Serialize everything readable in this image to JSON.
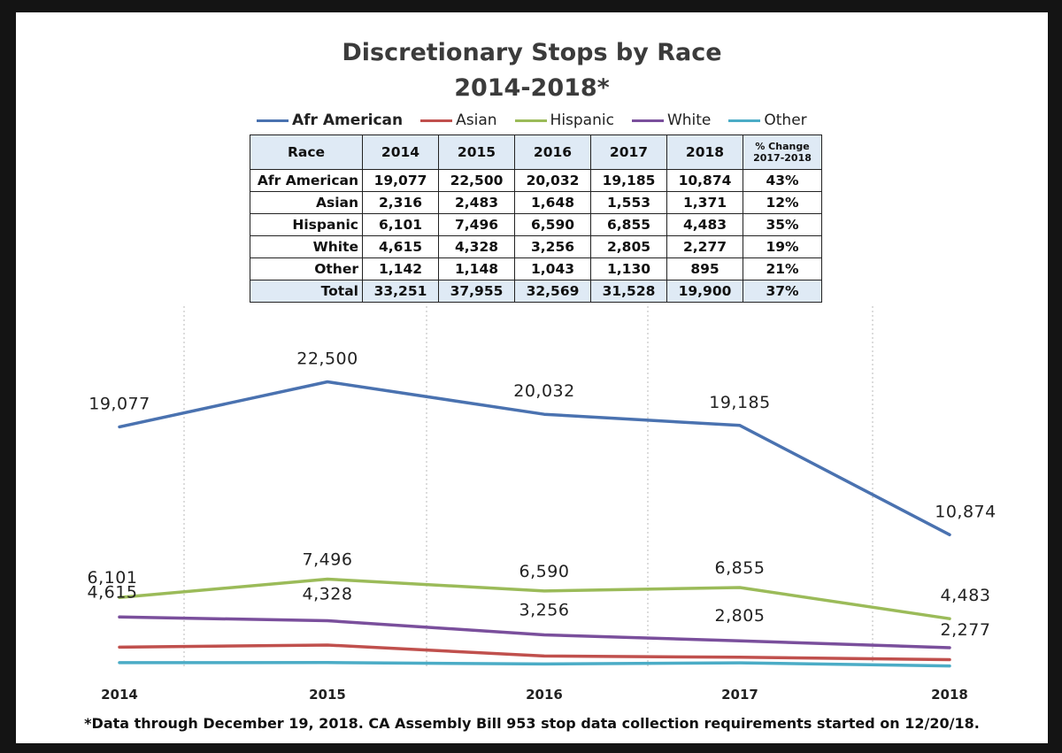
{
  "chart_data": {
    "type": "line",
    "title": "Discretionary Stops by Race",
    "subtitle": "2014-2018*",
    "categories": [
      "2014",
      "2015",
      "2016",
      "2017",
      "2018"
    ],
    "series": [
      {
        "name": "Afr American",
        "color": "#4a72b0",
        "values": [
          19077,
          22500,
          20032,
          19185,
          10874
        ],
        "labels": [
          "19,077",
          "22,500",
          "20,032",
          "19,185",
          "10,874"
        ]
      },
      {
        "name": "Asian",
        "color": "#c0504d",
        "values": [
          2316,
          2483,
          1648,
          1553,
          1371
        ],
        "labels": []
      },
      {
        "name": "Hispanic",
        "color": "#9bbb59",
        "values": [
          6101,
          7496,
          6590,
          6855,
          4483
        ],
        "labels": [
          "6,101",
          "7,496",
          "6,590",
          "6,855",
          "4,483"
        ]
      },
      {
        "name": "White",
        "color": "#7a4f9c",
        "values": [
          4615,
          4328,
          3256,
          2805,
          2277
        ],
        "labels": [
          "4,615",
          "4,328",
          "3,256",
          "2,805",
          "2,277"
        ]
      },
      {
        "name": "Other",
        "color": "#4bacc6",
        "values": [
          1142,
          1148,
          1043,
          1130,
          895
        ],
        "labels": []
      }
    ],
    "legend_position": "top",
    "grid": "vertical dotted lines",
    "table": {
      "header": [
        "Race",
        "2014",
        "2015",
        "2016",
        "2017",
        "2018"
      ],
      "change_header_line1": "% Change",
      "change_header_line2": "2017-2018",
      "rows": [
        {
          "race": "Afr American",
          "cells": [
            "19,077",
            "22,500",
            "20,032",
            "19,185",
            "10,874"
          ],
          "change": "43%"
        },
        {
          "race": "Asian",
          "cells": [
            "2,316",
            "2,483",
            "1,648",
            "1,553",
            "1,371"
          ],
          "change": "12%"
        },
        {
          "race": "Hispanic",
          "cells": [
            "6,101",
            "7,496",
            "6,590",
            "6,855",
            "4,483"
          ],
          "change": "35%"
        },
        {
          "race": "White",
          "cells": [
            "4,615",
            "4,328",
            "3,256",
            "2,805",
            "2,277"
          ],
          "change": "19%"
        },
        {
          "race": "Other",
          "cells": [
            "1,142",
            "1,148",
            "1,043",
            "1,130",
            "895"
          ],
          "change": "21%"
        },
        {
          "race": "Total",
          "cells": [
            "33,251",
            "37,955",
            "32,569",
            "31,528",
            "19,900"
          ],
          "change": "37%"
        }
      ]
    },
    "footnote": "*Data through December 19, 2018. CA Assembly Bill 953 stop data collection requirements started on 12/20/18."
  }
}
